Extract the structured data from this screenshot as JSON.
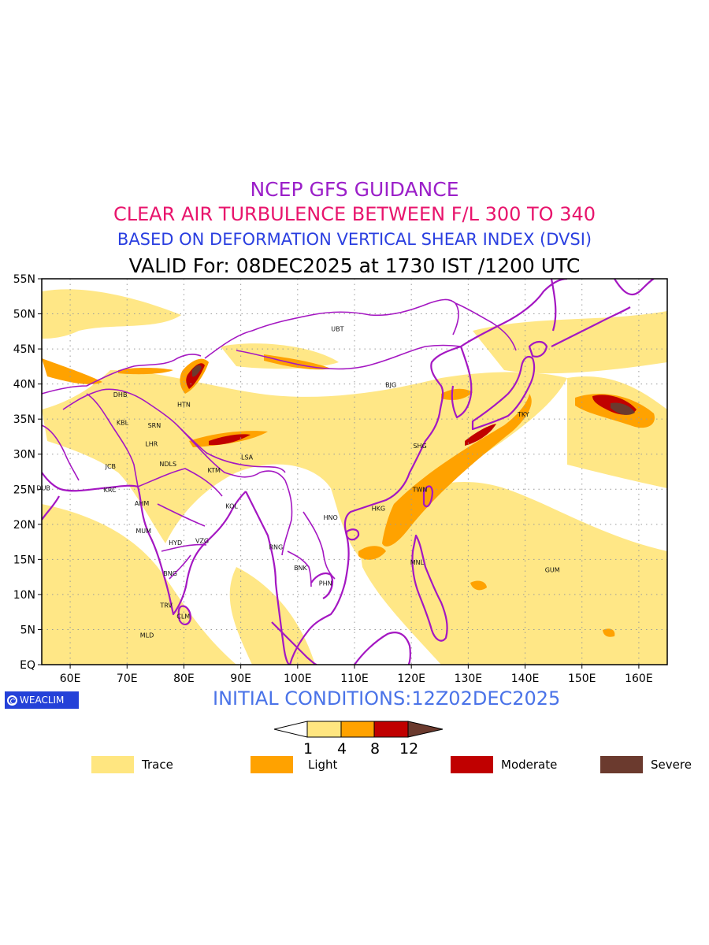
{
  "titles": {
    "line1": "NCEP GFS GUIDANCE",
    "line2": "CLEAR AIR TURBULENCE BETWEEN F/L 300 TO 340",
    "line3": "BASED ON DEFORMATION VERTICAL SHEAR INDEX (DVSI)",
    "line4": "VALID For: 08DEC2025 at 1730 IST /1200 UTC"
  },
  "map": {
    "lon_range": [
      55,
      165
    ],
    "lat_range": [
      0,
      55
    ],
    "lon_ticks": [
      "60E",
      "70E",
      "80E",
      "90E",
      "100E",
      "110E",
      "120E",
      "130E",
      "140E",
      "150E",
      "160E"
    ],
    "lat_ticks": [
      "EQ",
      "5N",
      "10N",
      "15N",
      "20N",
      "25N",
      "30N",
      "35N",
      "40N",
      "45N",
      "50N",
      "55N"
    ],
    "cities": [
      {
        "code": "UBT",
        "lon": 107,
        "lat": 47.9
      },
      {
        "code": "BJG",
        "lon": 116.4,
        "lat": 39.9
      },
      {
        "code": "HTN",
        "lon": 80,
        "lat": 37.1
      },
      {
        "code": "DHB",
        "lon": 68.8,
        "lat": 38.5
      },
      {
        "code": "KBL",
        "lon": 69.2,
        "lat": 34.5
      },
      {
        "code": "SRN",
        "lon": 74.8,
        "lat": 34.1
      },
      {
        "code": "LHR",
        "lon": 74.3,
        "lat": 31.5
      },
      {
        "code": "TKY",
        "lon": 139.7,
        "lat": 35.7
      },
      {
        "code": "SHG",
        "lon": 121.5,
        "lat": 31.2
      },
      {
        "code": "LSA",
        "lon": 91.1,
        "lat": 29.6
      },
      {
        "code": "JCB",
        "lon": 67.1,
        "lat": 28.3
      },
      {
        "code": "NDLS",
        "lon": 77.2,
        "lat": 28.6
      },
      {
        "code": "KTM",
        "lon": 85.3,
        "lat": 27.7
      },
      {
        "code": "DUB",
        "lon": 55.3,
        "lat": 25.2
      },
      {
        "code": "KRC",
        "lon": 67,
        "lat": 24.9
      },
      {
        "code": "TWN",
        "lon": 121.5,
        "lat": 25
      },
      {
        "code": "AHM",
        "lon": 72.6,
        "lat": 23
      },
      {
        "code": "KOL",
        "lon": 88.4,
        "lat": 22.6
      },
      {
        "code": "HKG",
        "lon": 114.2,
        "lat": 22.3
      },
      {
        "code": "HNO",
        "lon": 105.8,
        "lat": 21
      },
      {
        "code": "MUM",
        "lon": 72.9,
        "lat": 19.1
      },
      {
        "code": "HYD",
        "lon": 78.5,
        "lat": 17.4
      },
      {
        "code": "VZG",
        "lon": 83.2,
        "lat": 17.7
      },
      {
        "code": "RNG",
        "lon": 96.2,
        "lat": 16.8
      },
      {
        "code": "MNL",
        "lon": 121,
        "lat": 14.6
      },
      {
        "code": "GUM",
        "lon": 144.8,
        "lat": 13.5
      },
      {
        "code": "BNK",
        "lon": 100.5,
        "lat": 13.8
      },
      {
        "code": "BNG",
        "lon": 77.6,
        "lat": 13
      },
      {
        "code": "PHN",
        "lon": 104.9,
        "lat": 11.6
      },
      {
        "code": "TRV",
        "lon": 76.9,
        "lat": 8.5
      },
      {
        "code": "CLM",
        "lon": 79.9,
        "lat": 6.9
      },
      {
        "code": "MLD",
        "lon": 73.5,
        "lat": 4.2
      }
    ]
  },
  "logo_text": "WEACLIM",
  "initial_conditions": "INITIAL CONDITIONS:12Z02DEC2025",
  "colorbar": {
    "thresholds": [
      "1",
      "4",
      "8",
      "12"
    ],
    "colors": [
      "#ffe680",
      "#ffa200",
      "#c00000",
      "#6b3a2e"
    ]
  },
  "legend": [
    {
      "label": "Trace",
      "color": "#ffe680"
    },
    {
      "label": "Light",
      "color": "#ffa200"
    },
    {
      "label": "Moderate",
      "color": "#c00000"
    },
    {
      "label": "Severe",
      "color": "#6b3a2e"
    }
  ]
}
